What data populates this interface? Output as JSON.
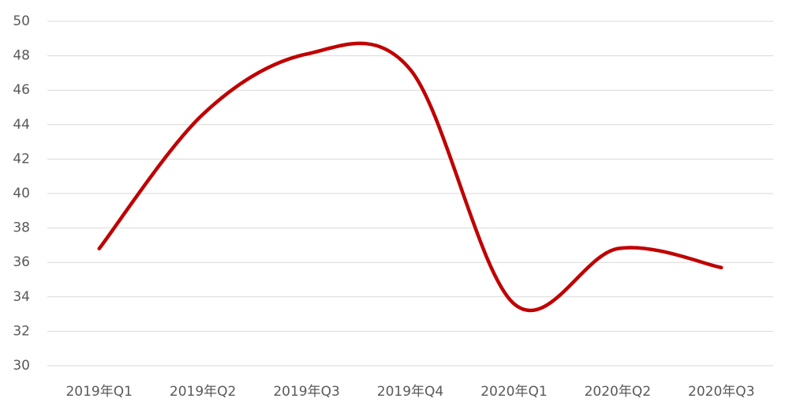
{
  "chart_data": {
    "type": "line",
    "categories": [
      "2019年Q1",
      "2019年Q2",
      "2019年Q3",
      "2019年Q4",
      "2020年Q1",
      "2020年Q2",
      "2020年Q3"
    ],
    "values": [
      36.8,
      44.6,
      48.1,
      47.2,
      33.6,
      36.8,
      35.7
    ],
    "color": "#c00000",
    "smooth": true,
    "ylim": [
      30,
      50
    ],
    "yticks": [
      30,
      32,
      34,
      36,
      38,
      40,
      42,
      44,
      46,
      48,
      50
    ],
    "grid": true
  }
}
